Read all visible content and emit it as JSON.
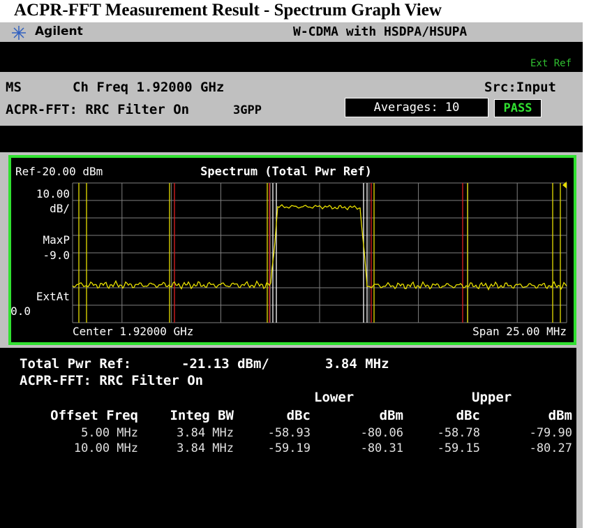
{
  "title": "ACPR-FFT Measurement Result - Spectrum Graph View",
  "header": {
    "brand": "Agilent",
    "mode": "W-CDMA with HSDPA/HSUPA"
  },
  "status": {
    "ext_ref": "Ext Ref"
  },
  "info": {
    "ms": "MS",
    "ch_freq": "Ch Freq 1.92000 GHz",
    "source": "Src:Input",
    "filter": "ACPR-FFT: RRC Filter On",
    "standard": "3GPP",
    "averages": "Averages: 10",
    "result": "PASS"
  },
  "graph": {
    "ref": "Ref-20.00 dBm",
    "title": "Spectrum  (Total Pwr Ref)",
    "scale": "10.00",
    "scale_unit": "dB/",
    "detector": "MaxP",
    "level": "-9.0",
    "ext_label": "ExtAt",
    "ext_value": "0.0",
    "center": "Center 1.92000 GHz",
    "span": "Span 25.00 MHz"
  },
  "results": {
    "total_label": "Total Pwr Ref:",
    "total_power": "-21.13 dBm/",
    "total_bw": "3.84 MHz",
    "filter": "ACPR-FFT: RRC Filter On",
    "lower": "Lower",
    "upper": "Upper",
    "columns": [
      "Offset Freq",
      "Integ BW",
      "dBc",
      "dBm",
      "dBc",
      "dBm"
    ],
    "rows": [
      [
        "5.00 MHz",
        "3.84 MHz",
        "-58.93",
        "-80.06",
        "-58.78",
        "-79.90"
      ],
      [
        "10.00 MHz",
        "3.84 MHz",
        "-59.19",
        "-80.31",
        "-59.15",
        "-80.27"
      ]
    ]
  }
}
